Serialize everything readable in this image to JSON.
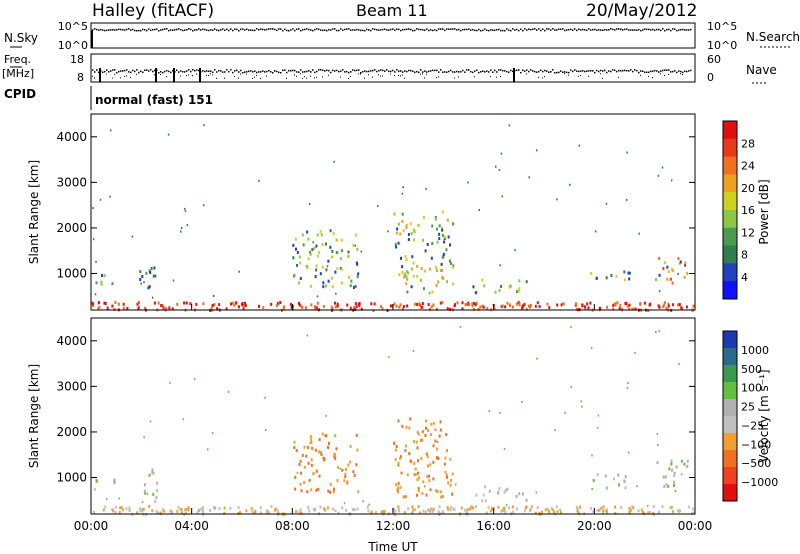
{
  "header": {
    "station": "Halley (fitACF)",
    "beam": "Beam 11",
    "date": "20/May/2012"
  },
  "strips": {
    "nsky": {
      "label": "N.Sky",
      "ticks": [
        "10^5",
        "10^0"
      ]
    },
    "nsearch": {
      "label": "N.Search",
      "ticks": [
        "10^5",
        "10^0"
      ]
    },
    "freq": {
      "label_top": "Freq.",
      "label_bottom": "[MHz]",
      "ticks": [
        "18",
        "8"
      ]
    },
    "nave": {
      "label": "Nave",
      "ticks": [
        "60",
        "0"
      ]
    },
    "cpid": {
      "label": "CPID",
      "value": "normal (fast) 151"
    }
  },
  "colors": {
    "scatter_blue": "#1f3fb8",
    "power_scale": [
      "#1010ff",
      "#2040c0",
      "#2e7e4e",
      "#4a9a50",
      "#8ac84a",
      "#d0d020",
      "#f0a020",
      "#f07020",
      "#e83a1a",
      "#e01010"
    ],
    "velocity_scale": [
      "#e01010",
      "#f04020",
      "#f07020",
      "#f0a030",
      "#c0c0c0",
      "#b0b0b0",
      "#60c040",
      "#3a9a50",
      "#2a6a8a",
      "#1a3ab0"
    ]
  },
  "chart_data": [
    {
      "type": "heatmap",
      "panel": "power",
      "xlabel": "Time UT",
      "ylabel": "Slant Range [km]",
      "x_ticks": [
        "00:00",
        "04:00",
        "08:00",
        "12:00",
        "16:00",
        "20:00",
        "00:00"
      ],
      "xlim": [
        0,
        24
      ],
      "y_ticks": [
        1000,
        2000,
        3000,
        4000
      ],
      "ylim": [
        200,
        4500
      ],
      "colorbar": {
        "label": "Power [dB]",
        "ticks": [
          4,
          8,
          12,
          16,
          20,
          24,
          28
        ],
        "range": [
          0,
          32
        ]
      },
      "patches": [
        {
          "t0": 8.0,
          "t1": 10.6,
          "r0": 700,
          "r1": 2000,
          "value": 14
        },
        {
          "t0": 12.0,
          "t1": 14.4,
          "r0": 600,
          "r1": 2400,
          "value": 16
        },
        {
          "t0": 0.0,
          "t1": 1.0,
          "r0": 750,
          "r1": 1000,
          "value": 10
        },
        {
          "t0": 1.8,
          "t1": 2.6,
          "r0": 500,
          "r1": 1200,
          "value": 8
        },
        {
          "t0": 15.0,
          "t1": 17.3,
          "r0": 600,
          "r1": 900,
          "value": 12
        },
        {
          "t0": 19.8,
          "t1": 21.4,
          "r0": 800,
          "r1": 1100,
          "value": 14
        },
        {
          "t0": 22.4,
          "t1": 23.8,
          "r0": 800,
          "r1": 1400,
          "value": 22
        }
      ]
    },
    {
      "type": "heatmap",
      "panel": "velocity",
      "xlabel": "Time UT",
      "ylabel": "Slant Range [km]",
      "x_ticks": [
        "00:00",
        "04:00",
        "08:00",
        "12:00",
        "16:00",
        "20:00",
        "00:00"
      ],
      "xlim": [
        0,
        24
      ],
      "y_ticks": [
        1000,
        2000,
        3000,
        4000
      ],
      "ylim": [
        200,
        4500
      ],
      "colorbar": {
        "label": "Velocity [m s⁻¹]",
        "ticks": [
          "1000",
          "500",
          "100",
          "25",
          "−25",
          "−100",
          "−500",
          "−1000"
        ]
      },
      "patches": [
        {
          "t0": 8.0,
          "t1": 10.6,
          "r0": 700,
          "r1": 2000,
          "value": -300
        },
        {
          "t0": 12.0,
          "t1": 14.4,
          "r0": 600,
          "r1": 2400,
          "value": -250
        },
        {
          "t0": 0.0,
          "t1": 1.0,
          "r0": 750,
          "r1": 1000,
          "value": 60
        },
        {
          "t0": 1.8,
          "t1": 2.6,
          "r0": 500,
          "r1": 1200,
          "value": 80
        },
        {
          "t0": 15.2,
          "t1": 17.3,
          "r0": 500,
          "r1": 850,
          "value": 0
        },
        {
          "t0": 19.8,
          "t1": 21.4,
          "r0": 800,
          "r1": 1100,
          "value": 60
        },
        {
          "t0": 22.4,
          "t1": 23.8,
          "r0": 800,
          "r1": 1400,
          "value": 80
        }
      ]
    }
  ]
}
